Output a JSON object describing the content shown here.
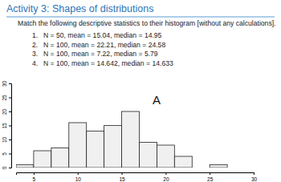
{
  "header": {
    "title": "Activity 3: Shapes of distributions"
  },
  "instruction": "Match the following descriptive statistics to their histogram [without any calculations].",
  "items": [
    {
      "number": "1.",
      "text": "N = 50, mean = 15.04, median = 14.95"
    },
    {
      "number": "2.",
      "text": "N = 100, mean = 22.21, median = 24.58"
    },
    {
      "number": "3.",
      "text": "N = 100, mean = 7.22, median = 5.79"
    },
    {
      "number": "4.",
      "text": "N = 100, mean = 14.642, median = 14.633"
    }
  ],
  "chart_data": {
    "type": "histogram",
    "annotation": "A",
    "bins": [
      3,
      5,
      7,
      9,
      11,
      13,
      15,
      17,
      19,
      21,
      23,
      25,
      27
    ],
    "counts": [
      1,
      6,
      7,
      16,
      13,
      15,
      20,
      9,
      8,
      4,
      0,
      1
    ],
    "color": "#f0f0f0",
    "xlim": [
      3,
      30
    ],
    "xticks": [
      5,
      10,
      15,
      20,
      25,
      30
    ],
    "ylim": [
      0,
      30
    ],
    "yticks": [
      0,
      5,
      10,
      15,
      20,
      25,
      30
    ],
    "grid": false
  }
}
